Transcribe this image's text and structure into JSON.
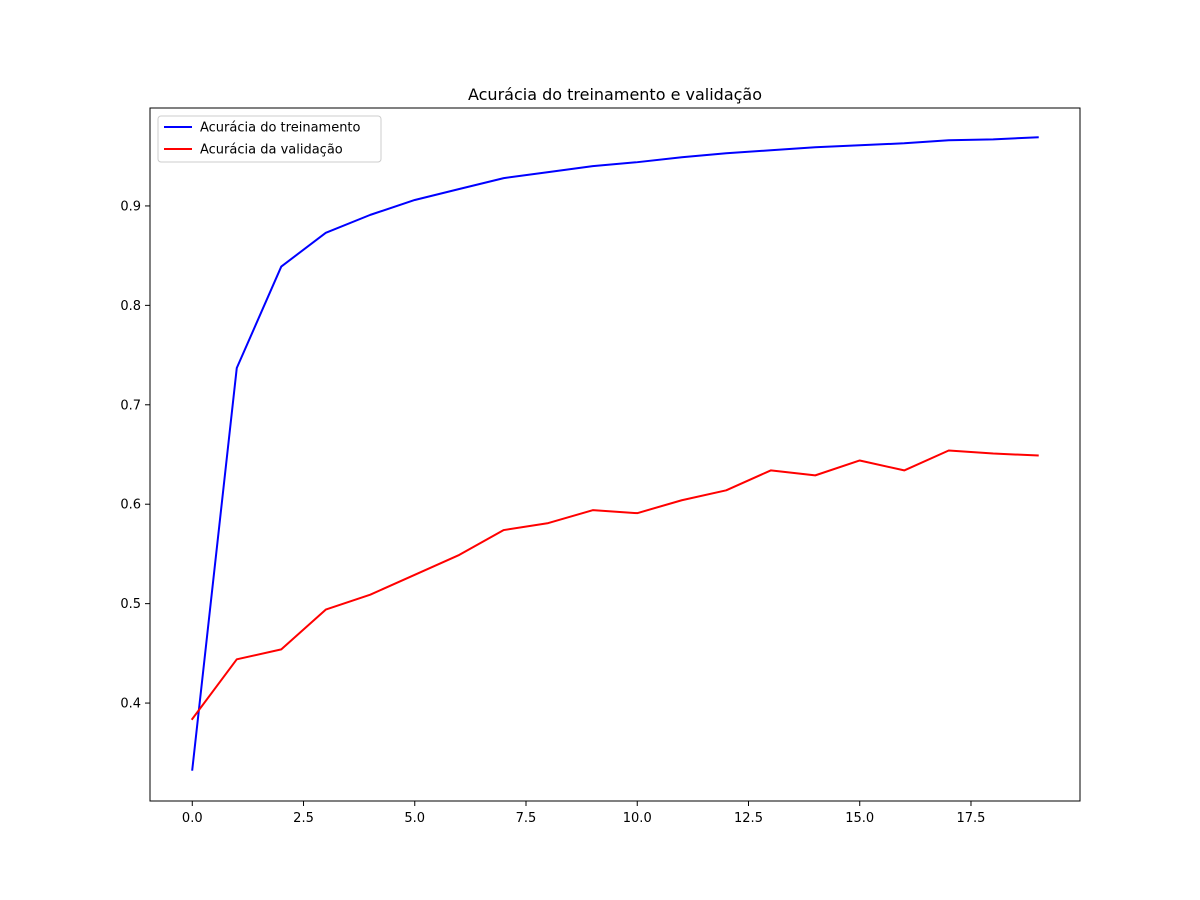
{
  "chart_data": {
    "type": "line",
    "title": "Acurácia do treinamento e validação",
    "xlabel": "",
    "ylabel": "",
    "xlim": [
      -0.95,
      19.95
    ],
    "ylim": [
      0.3015,
      0.9985
    ],
    "xticks": [
      0.0,
      2.5,
      5.0,
      7.5,
      10.0,
      12.5,
      15.0,
      17.5
    ],
    "xtick_labels": [
      "0.0",
      "2.5",
      "5.0",
      "7.5",
      "10.0",
      "12.5",
      "15.0",
      "17.5"
    ],
    "yticks": [
      0.4,
      0.5,
      0.6,
      0.7,
      0.8,
      0.9
    ],
    "ytick_labels": [
      "0.4",
      "0.5",
      "0.6",
      "0.7",
      "0.8",
      "0.9"
    ],
    "grid": false,
    "legend_position": "top-left",
    "x": [
      0,
      1,
      2,
      3,
      4,
      5,
      6,
      7,
      8,
      9,
      10,
      11,
      12,
      13,
      14,
      15,
      16,
      17,
      18,
      19
    ],
    "series": [
      {
        "name": "Acurácia do treinamento",
        "color": "#0000ff",
        "values": [
          0.333,
          0.737,
          0.839,
          0.873,
          0.891,
          0.906,
          0.917,
          0.928,
          0.934,
          0.94,
          0.944,
          0.949,
          0.953,
          0.956,
          0.959,
          0.961,
          0.963,
          0.966,
          0.967,
          0.969
        ]
      },
      {
        "name": "Acurácia da validação",
        "color": "#ff0000",
        "values": [
          0.384,
          0.444,
          0.454,
          0.494,
          0.509,
          0.529,
          0.549,
          0.574,
          0.581,
          0.594,
          0.591,
          0.604,
          0.614,
          0.634,
          0.629,
          0.644,
          0.634,
          0.654,
          0.651,
          0.649
        ]
      }
    ]
  }
}
